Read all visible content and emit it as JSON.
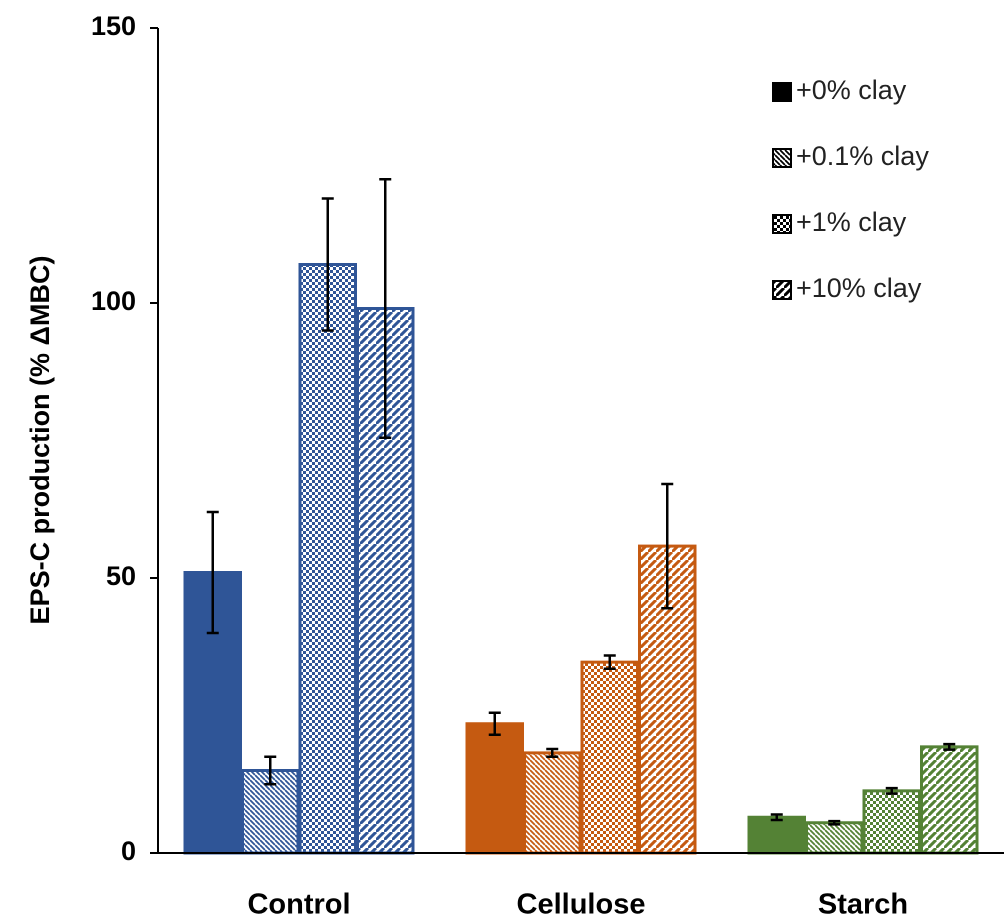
{
  "chart_data": {
    "type": "bar",
    "y_label": "EPS-C production (% ΔMBC)",
    "categories": [
      "Control",
      "Cellulose",
      "Starch"
    ],
    "category_colors": [
      "#2f5597",
      "#c55a11",
      "#548235"
    ],
    "legend_color": "#000000",
    "series": [
      {
        "name": "+0% clay",
        "pattern": "solid",
        "values": [
          51,
          23.5,
          6.5
        ],
        "errors": [
          11,
          2,
          0.5
        ]
      },
      {
        "name": "+0.1% clay",
        "pattern": "hatch-dense",
        "values": [
          15,
          18.2,
          5.5
        ],
        "errors": [
          2.5,
          0.7,
          0.3
        ]
      },
      {
        "name": "+1% clay",
        "pattern": "dots",
        "values": [
          107,
          34.7,
          11.3
        ],
        "errors": [
          12,
          1.2,
          0.5
        ]
      },
      {
        "name": "+10% clay",
        "pattern": "hatch-wide",
        "values": [
          99,
          55.8,
          19.3
        ],
        "errors": [
          23.5,
          11.3,
          0.5
        ]
      }
    ],
    "ylim": [
      0,
      150
    ],
    "yticks": [
      0,
      50,
      100,
      150
    ],
    "grid": false
  }
}
